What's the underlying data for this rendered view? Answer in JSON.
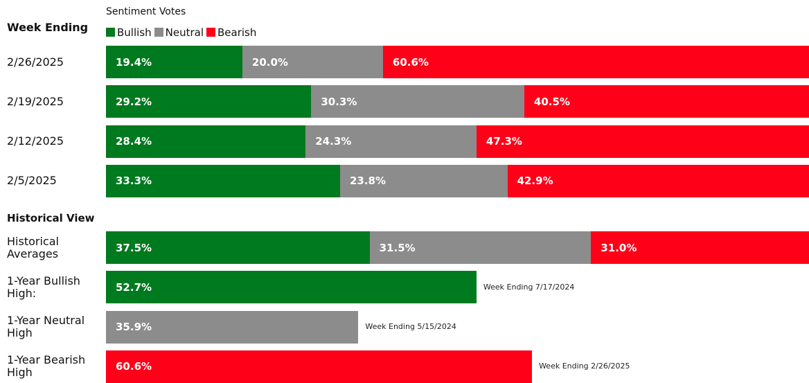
{
  "chart_data": [
    {
      "type": "bar",
      "stacked": true,
      "orientation": "horizontal",
      "title": "Sentiment Votes",
      "header": "Week Ending",
      "categories": [
        "2/26/2025",
        "2/19/2025",
        "2/12/2025",
        "2/5/2025"
      ],
      "xlim": [
        0,
        100
      ],
      "series": [
        {
          "name": "Bullish",
          "color": "#007a1f",
          "values": [
            19.4,
            29.2,
            28.4,
            33.3
          ],
          "value_labels": [
            "19.4%",
            "29.2%",
            "28.4%",
            "33.3%"
          ]
        },
        {
          "name": "Neutral",
          "color": "#8c8c8c",
          "values": [
            20.0,
            30.3,
            24.3,
            23.8
          ],
          "value_labels": [
            "20.0%",
            "30.3%",
            "24.3%",
            "23.8%"
          ]
        },
        {
          "name": "Bearish",
          "color": "#ff0019",
          "values": [
            60.6,
            40.5,
            47.3,
            42.9
          ],
          "value_labels": [
            "60.6%",
            "40.5%",
            "47.3%",
            "42.9%"
          ]
        }
      ]
    },
    {
      "type": "bar",
      "stacked": true,
      "orientation": "horizontal",
      "header": "Historical View",
      "categories": [
        "Historical Averages",
        "1-Year Bullish High:",
        "1-Year Neutral High",
        "1-Year Bearish High"
      ],
      "annotations": [
        null,
        "Week Ending 7/17/2024",
        "Week Ending 5/15/2024",
        "Week Ending 2/26/2025"
      ],
      "xlim": [
        0,
        100
      ],
      "series": [
        {
          "name": "Bullish",
          "color": "#007a1f",
          "values": [
            37.5,
            52.7,
            null,
            null
          ],
          "value_labels": [
            "37.5%",
            "52.7%",
            null,
            null
          ]
        },
        {
          "name": "Neutral",
          "color": "#8c8c8c",
          "values": [
            31.5,
            null,
            35.9,
            null
          ],
          "value_labels": [
            "31.5%",
            null,
            "35.9%",
            null
          ]
        },
        {
          "name": "Bearish",
          "color": "#ff0019",
          "values": [
            31.0,
            null,
            null,
            60.6
          ],
          "value_labels": [
            "31.0%",
            null,
            null,
            "60.6%"
          ]
        }
      ]
    }
  ]
}
